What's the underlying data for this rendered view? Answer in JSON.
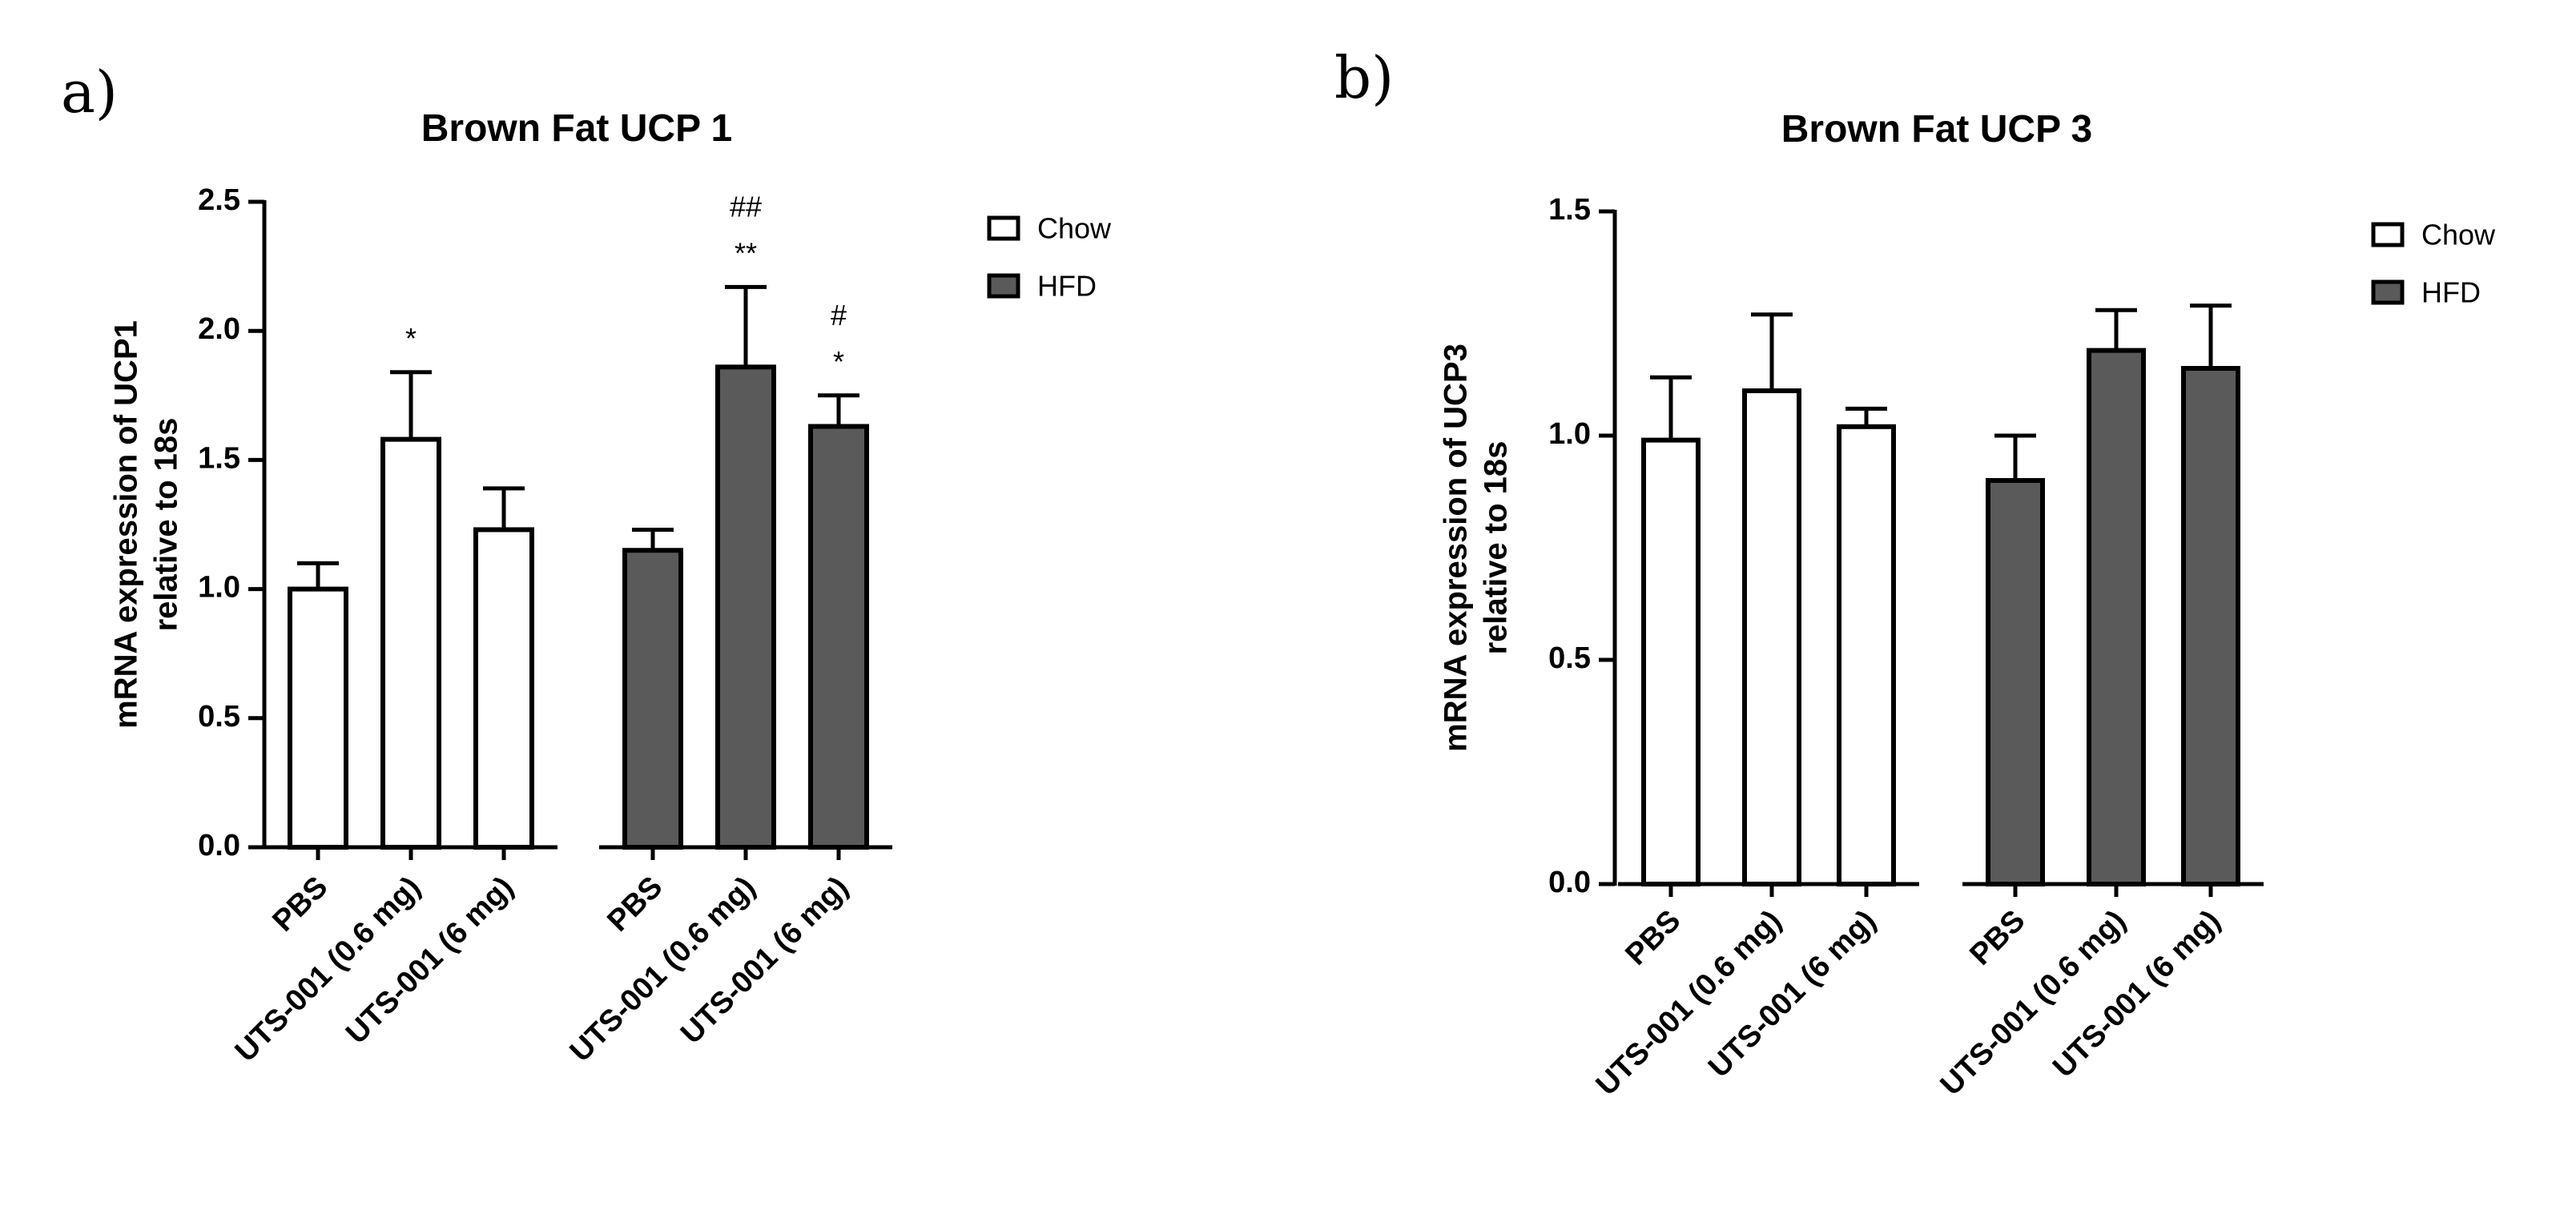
{
  "colors": {
    "chow": "#ffffff",
    "hfd": "#5a5a5a",
    "stroke": "#000000"
  },
  "chart_data": [
    {
      "panel_label": "a)",
      "type": "bar",
      "title": "Brown Fat UCP 1",
      "ylabel": [
        "mRNA expression of UCP1",
        "relative to 18s"
      ],
      "xlabel": "",
      "ylim": [
        0,
        2.5
      ],
      "yticks": [
        0.0,
        0.5,
        1.0,
        1.5,
        2.0,
        2.5
      ],
      "ytick_labels": [
        "0.0",
        "0.5",
        "1.0",
        "1.5",
        "2.0",
        "2.5"
      ],
      "legend": {
        "position": "right",
        "items": [
          {
            "label": "Chow",
            "group": "chow"
          },
          {
            "label": "HFD",
            "group": "hfd"
          }
        ]
      },
      "bars": [
        {
          "category": "PBS",
          "group": "chow",
          "value": 1.0,
          "error": 0.1,
          "annotations": []
        },
        {
          "category": "UTS-001 (0.6 mg)",
          "group": "chow",
          "value": 1.58,
          "error": 0.26,
          "annotations": [
            "*"
          ]
        },
        {
          "category": "UTS-001 (6 mg)",
          "group": "chow",
          "value": 1.23,
          "error": 0.16,
          "annotations": []
        },
        {
          "category": "PBS",
          "group": "hfd",
          "value": 1.15,
          "error": 0.08,
          "annotations": []
        },
        {
          "category": "UTS-001 (0.6 mg)",
          "group": "hfd",
          "value": 1.86,
          "error": 0.31,
          "annotations": [
            "**",
            "##"
          ]
        },
        {
          "category": "UTS-001 (6 mg)",
          "group": "hfd",
          "value": 1.63,
          "error": 0.12,
          "annotations": [
            "*",
            "#"
          ]
        }
      ]
    },
    {
      "panel_label": "b)",
      "type": "bar",
      "title": "Brown Fat UCP 3",
      "ylabel": [
        "mRNA expression of UCP3",
        "relative to 18s"
      ],
      "xlabel": "",
      "ylim": [
        0,
        1.5
      ],
      "yticks": [
        0.0,
        0.5,
        1.0,
        1.5
      ],
      "ytick_labels": [
        "0.0",
        "0.5",
        "1.0",
        "1.5"
      ],
      "legend": {
        "position": "right",
        "items": [
          {
            "label": "Chow",
            "group": "chow"
          },
          {
            "label": "HFD",
            "group": "hfd"
          }
        ]
      },
      "bars": [
        {
          "category": "PBS",
          "group": "chow",
          "value": 0.99,
          "error": 0.14,
          "annotations": []
        },
        {
          "category": "UTS-001 (0.6 mg)",
          "group": "chow",
          "value": 1.1,
          "error": 0.17,
          "annotations": []
        },
        {
          "category": "UTS-001 (6 mg)",
          "group": "chow",
          "value": 1.02,
          "error": 0.04,
          "annotations": []
        },
        {
          "category": "PBS",
          "group": "hfd",
          "value": 0.9,
          "error": 0.1,
          "annotations": []
        },
        {
          "category": "UTS-001 (0.6 mg)",
          "group": "hfd",
          "value": 1.19,
          "error": 0.09,
          "annotations": []
        },
        {
          "category": "UTS-001 (6 mg)",
          "group": "hfd",
          "value": 1.15,
          "error": 0.14,
          "annotations": []
        }
      ]
    }
  ]
}
